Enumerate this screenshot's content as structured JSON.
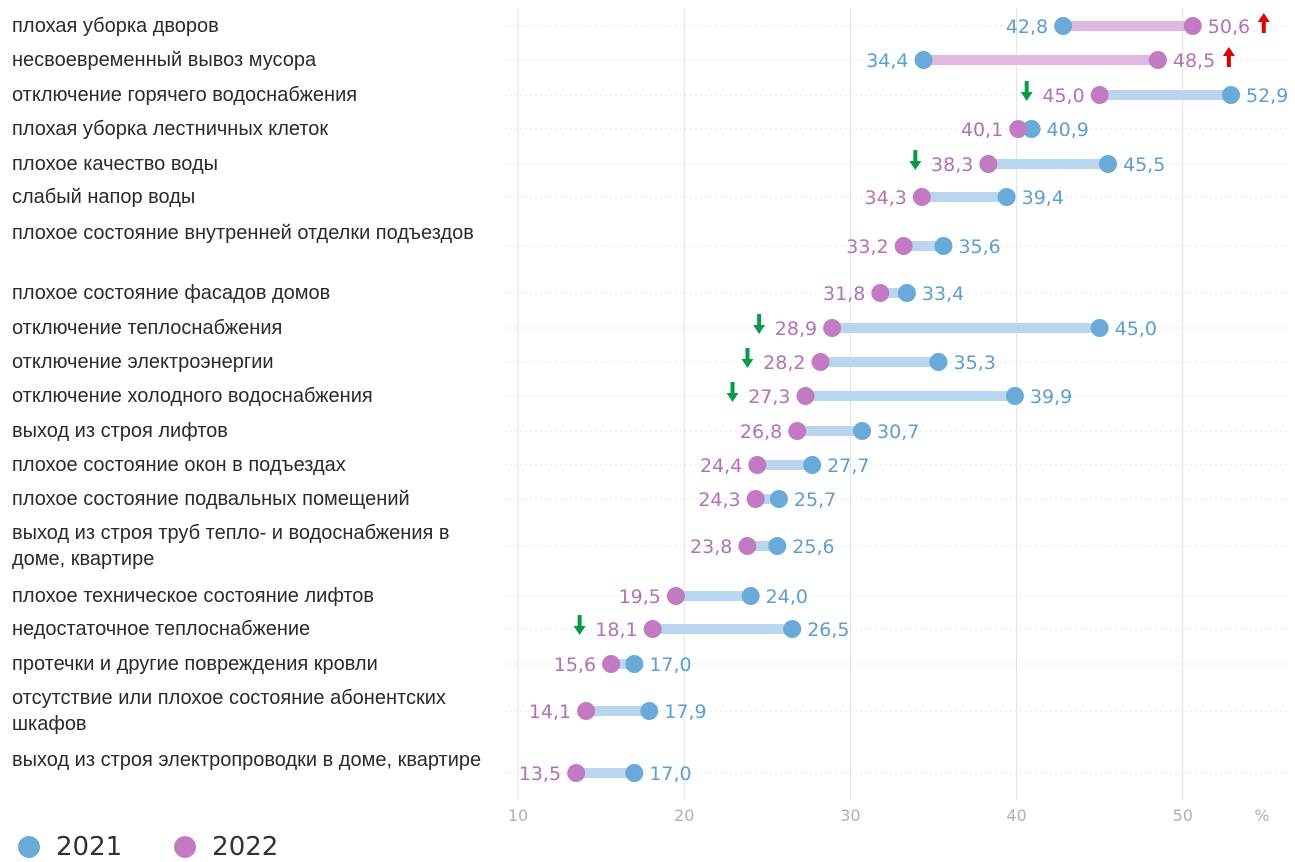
{
  "chart_data": {
    "type": "dumbbell",
    "unit_label": "%",
    "xlim": [
      10,
      56
    ],
    "x_ticks": [
      "10",
      "20",
      "30",
      "40",
      "50"
    ],
    "grid": true,
    "legend_position": "bottom-left",
    "series": [
      {
        "name": "2021",
        "color": "#6aaad9"
      },
      {
        "name": "2022",
        "color": "#c27bc3"
      }
    ],
    "colors": {
      "bar_increase": "#dfb8e2",
      "bar_decrease": "#b9d6ee",
      "label_2021": "#5c9fcf",
      "label_2022": "#b571b7",
      "arrow_up": "#e00000",
      "arrow_down": "#0a9a4a",
      "grid": "#e2e2e2",
      "tick": "#b0b0b0"
    },
    "rows": [
      {
        "label": "плохая уборка дворов",
        "v2021": 42.8,
        "v2022": 50.6,
        "t2021": "42,8",
        "t2022": "50,6",
        "arrow": "up"
      },
      {
        "label": "несвоевременный вывоз мусора",
        "v2021": 34.4,
        "v2022": 48.5,
        "t2021": "34,4",
        "t2022": "48,5",
        "arrow": "up"
      },
      {
        "label": "отключение горячего водоснабжения",
        "v2021": 52.9,
        "v2022": 45.0,
        "t2021": "52,9",
        "t2022": "45,0",
        "arrow": "down"
      },
      {
        "label": "плохая уборка лестничных клеток",
        "v2021": 40.9,
        "v2022": 40.1,
        "t2021": "40,9",
        "t2022": "40,1",
        "arrow": null
      },
      {
        "label": "плохое качество воды",
        "v2021": 45.5,
        "v2022": 38.3,
        "t2021": "45,5",
        "t2022": "38,3",
        "arrow": "down"
      },
      {
        "label": "слабый напор воды",
        "v2021": 39.4,
        "v2022": 34.3,
        "t2021": "39,4",
        "t2022": "34,3",
        "arrow": null
      },
      {
        "label": "плохое состояние внутренней отделки подъездов",
        "v2021": 35.6,
        "v2022": 33.2,
        "t2021": "35,6",
        "t2022": "33,2",
        "arrow": null
      },
      {
        "label": "плохое состояние фасадов домов",
        "v2021": 33.4,
        "v2022": 31.8,
        "t2021": "33,4",
        "t2022": "31,8",
        "arrow": null
      },
      {
        "label": "отключение теплоснабжения",
        "v2021": 45.0,
        "v2022": 28.9,
        "t2021": "45,0",
        "t2022": "28,9",
        "arrow": "down"
      },
      {
        "label": "отключение электроэнергии",
        "v2021": 35.3,
        "v2022": 28.2,
        "t2021": "35,3",
        "t2022": "28,2",
        "arrow": "down"
      },
      {
        "label": "отключение холодного водоснабжения",
        "v2021": 39.9,
        "v2022": 27.3,
        "t2021": "39,9",
        "t2022": "27,3",
        "arrow": "down"
      },
      {
        "label": "выход из строя лифтов",
        "v2021": 30.7,
        "v2022": 26.8,
        "t2021": "30,7",
        "t2022": "26,8",
        "arrow": null
      },
      {
        "label": "плохое состояние окон в подъездах",
        "v2021": 27.7,
        "v2022": 24.4,
        "t2021": "27,7",
        "t2022": "24,4",
        "arrow": null
      },
      {
        "label": "плохое состояние подвальных помещений",
        "v2021": 25.7,
        "v2022": 24.3,
        "t2021": "25,7",
        "t2022": "24,3",
        "arrow": null
      },
      {
        "label": "выход из строя труб тепло- и водоснабжения в доме, квартире",
        "v2021": 25.6,
        "v2022": 23.8,
        "t2021": "25,6",
        "t2022": "23,8",
        "arrow": null
      },
      {
        "label": "плохое техническое состояние лифтов",
        "v2021": 24.0,
        "v2022": 19.5,
        "t2021": "24,0",
        "t2022": "19,5",
        "arrow": null
      },
      {
        "label": "недостаточное теплоснабжение",
        "v2021": 26.5,
        "v2022": 18.1,
        "t2021": "26,5",
        "t2022": "18,1",
        "arrow": "down"
      },
      {
        "label": "протечки и другие повреждения кровли",
        "v2021": 17.0,
        "v2022": 15.6,
        "t2021": "17,0",
        "t2022": "15,6",
        "arrow": null
      },
      {
        "label": "отсутствие или плохое состояние абонентских шкафов",
        "v2021": 17.9,
        "v2022": 14.1,
        "t2021": "17,9",
        "t2022": "14,1",
        "arrow": null
      },
      {
        "label": "выход из строя электропроводки в доме, квартире",
        "v2021": 17.0,
        "v2022": 13.5,
        "t2021": "17,0",
        "t2022": "13,5",
        "arrow": null
      }
    ]
  }
}
